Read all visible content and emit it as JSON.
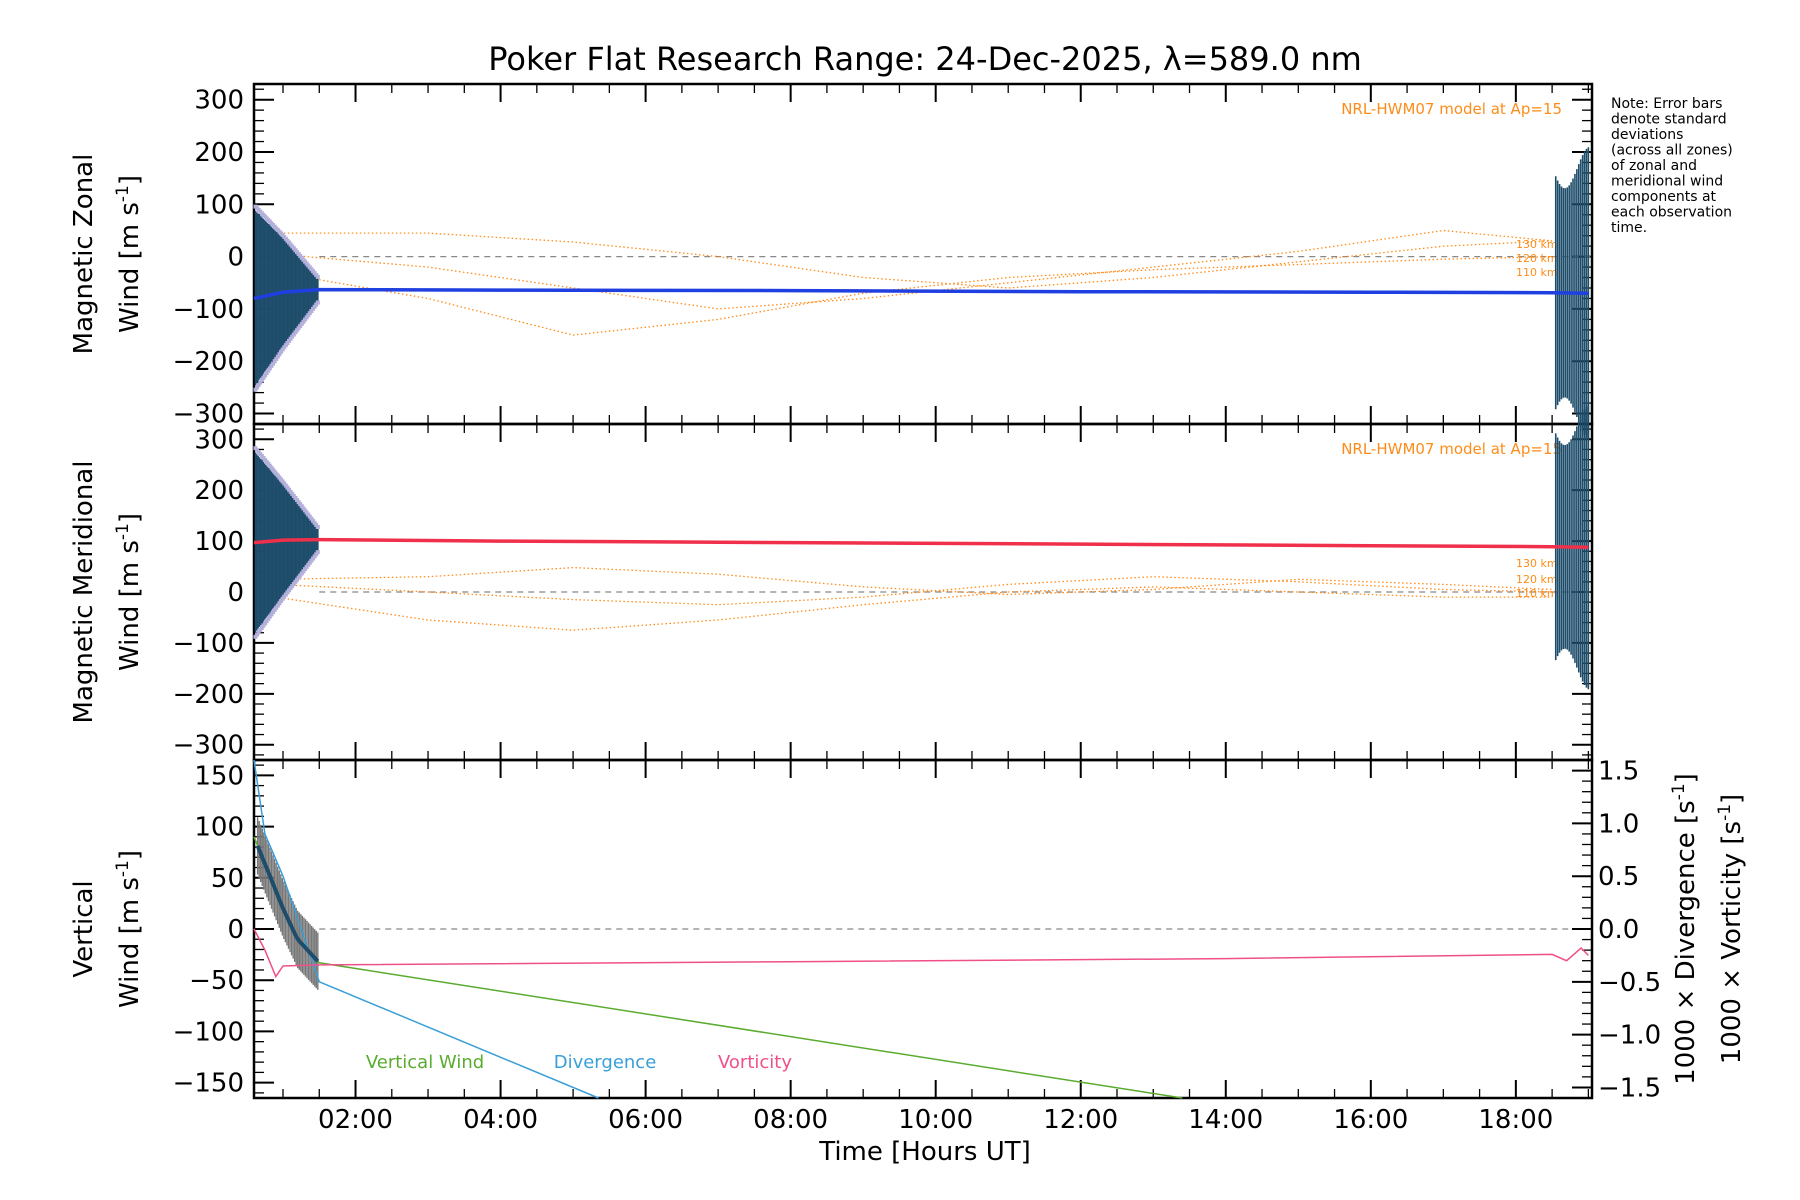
{
  "title": "Poker Flat Research Range: 24-Dec-2025, λ=589.0 nm",
  "note": [
    "Note: Error bars",
    "denote standard",
    "deviations",
    "(across all zones)",
    "of zonal and",
    "meridional wind",
    "components at",
    "each observation",
    "time."
  ],
  "colors": {
    "zonal": "#1f3fe0",
    "meridional": "#f0304a",
    "model": "#ff8c1a",
    "errorbar": "#1e4d6b",
    "lavender": "#b4b0dc",
    "lightblue": "#3fa8dc",
    "vertical": "#5aab2e",
    "divergence": "#3a9fd8",
    "vorticity": "#f0508a",
    "zero_line": "#888888"
  },
  "chart_data": [
    {
      "type": "line",
      "ylabel_line1": "Magnetic Zonal",
      "ylabel_line2_a": "Wind [m s",
      "ylabel_sup": "-1",
      "ylabel_line2_b": "]",
      "ylim": [
        -320,
        330
      ],
      "yticks": [
        "300",
        "200",
        "100",
        "0",
        "−100",
        "−200",
        "−300"
      ],
      "ytick_values": [
        300,
        200,
        100,
        0,
        -100,
        -200,
        -300
      ],
      "model_label": "NRL-HWM07 model at Ap=15",
      "altitude_labels": [
        "130 km",
        "120 km",
        "110 km"
      ],
      "series": [
        {
          "name": "zonal wind",
          "x": [
            0.6,
            1.0,
            1.5,
            4.0,
            8.0,
            12.0,
            16.0,
            18.5,
            19.0
          ],
          "values": [
            -80,
            -68,
            -63,
            -64,
            -65,
            -67,
            -68,
            -69,
            -70
          ]
        }
      ],
      "model": [
        {
          "x": [
            0.9,
            3,
            5,
            7,
            9,
            11,
            13,
            15,
            17,
            18.5
          ],
          "values": [
            45,
            45,
            28,
            0,
            -40,
            -60,
            -40,
            -10,
            20,
            30
          ]
        },
        {
          "x": [
            0.9,
            3,
            5,
            7,
            9,
            11,
            13,
            15,
            17,
            18.5
          ],
          "values": [
            5,
            -20,
            -60,
            -100,
            -80,
            -50,
            -20,
            10,
            50,
            30
          ]
        },
        {
          "x": [
            0.9,
            3,
            5,
            7,
            9,
            11,
            13,
            15,
            17,
            18.5
          ],
          "values": [
            -30,
            -80,
            -150,
            -120,
            -70,
            -40,
            -25,
            -15,
            -5,
            0
          ]
        }
      ]
    },
    {
      "type": "line",
      "ylabel_line1": "Magnetic Meridional",
      "ylabel_line2_a": "Wind [m s",
      "ylabel_sup": "-1",
      "ylabel_line2_b": "]",
      "ylim": [
        -330,
        330
      ],
      "yticks": [
        "300",
        "200",
        "100",
        "0",
        "−100",
        "−200",
        "−300"
      ],
      "ytick_values": [
        300,
        200,
        100,
        0,
        -100,
        -200,
        -300
      ],
      "model_label": "NRL-HWM07 model at Ap=15",
      "altitude_labels": [
        "130 km",
        "120 km",
        "110 km"
      ],
      "series": [
        {
          "name": "meridional wind",
          "x": [
            0.6,
            1.0,
            1.5,
            4.0,
            8.0,
            12.0,
            16.0,
            18.5,
            19.0
          ],
          "values": [
            97,
            102,
            103,
            100,
            97,
            94,
            91,
            89,
            88
          ]
        }
      ],
      "model": [
        {
          "x": [
            0.9,
            3,
            5,
            7,
            9,
            11,
            13,
            15,
            17,
            18.5
          ],
          "values": [
            25,
            30,
            48,
            35,
            10,
            -5,
            5,
            25,
            15,
            5
          ]
        },
        {
          "x": [
            0.9,
            3,
            5,
            7,
            9,
            11,
            13,
            15,
            17,
            18.5
          ],
          "values": [
            15,
            0,
            -15,
            -25,
            -10,
            15,
            30,
            20,
            5,
            0
          ]
        },
        {
          "x": [
            0.9,
            3,
            5,
            7,
            9,
            11,
            13,
            15,
            17,
            18.5
          ],
          "values": [
            -10,
            -55,
            -75,
            -55,
            -25,
            0,
            10,
            0,
            -10,
            -10
          ]
        }
      ]
    },
    {
      "type": "line",
      "ylabel_line1": "Vertical",
      "ylabel_line2_a": "Wind [m s",
      "ylabel_sup": "-1",
      "ylabel_line2_b": "]",
      "ylim": [
        -165,
        165
      ],
      "yticks": [
        "150",
        "100",
        "50",
        "0",
        "−50",
        "−100",
        "−150"
      ],
      "ytick_values": [
        150,
        100,
        50,
        0,
        -50,
        -100,
        -150
      ],
      "y2lim": [
        -1.6,
        1.6
      ],
      "y2ticks": [
        "1.5",
        "1.0",
        "0.5",
        "0.0",
        "−0.5",
        "−1.0",
        "−1.5"
      ],
      "y2tick_values": [
        1.5,
        1.0,
        0.5,
        0.0,
        -0.5,
        -1.0,
        -1.5
      ],
      "y2label_div_a": "1000 × Divergence [s",
      "y2label_div_sup": "-1",
      "y2label_div_b": "]",
      "y2label_vort_a": "1000 × Vorticity [s",
      "y2label_vort_sup": "-1",
      "y2label_vort_b": "]",
      "legend": [
        "Vertical Wind",
        "Divergence",
        "Vorticity"
      ],
      "series": [
        {
          "name": "Vertical Wind",
          "x": [
            0.6,
            0.8,
            1.0,
            1.2,
            1.5,
            13.4
          ],
          "values": [
            90,
            55,
            20,
            -10,
            -33,
            -165
          ]
        },
        {
          "name": "Divergence",
          "x": [
            0.6,
            0.75,
            1.0,
            1.2,
            1.5,
            5.35
          ],
          "values": [
            1.6,
            0.9,
            0.5,
            0.1,
            -0.5,
            -1.6
          ]
        },
        {
          "name": "Vorticity",
          "x": [
            0.6,
            0.75,
            0.9,
            1.0,
            1.5,
            8.0,
            14.0,
            18.5,
            18.7,
            18.9,
            19.0
          ],
          "values": [
            0.0,
            -0.2,
            -0.45,
            -0.35,
            -0.34,
            -0.31,
            -0.28,
            -0.24,
            -0.3,
            -0.18,
            -0.25
          ]
        }
      ]
    }
  ],
  "xaxis": {
    "xlim": [
      0.6,
      19.05
    ],
    "ticks": [
      "02:00",
      "04:00",
      "06:00",
      "08:00",
      "10:00",
      "12:00",
      "14:00",
      "16:00",
      "18:00"
    ],
    "tick_values": [
      2,
      4,
      6,
      8,
      10,
      12,
      14,
      16,
      18
    ],
    "label": "Time [Hours UT]"
  }
}
